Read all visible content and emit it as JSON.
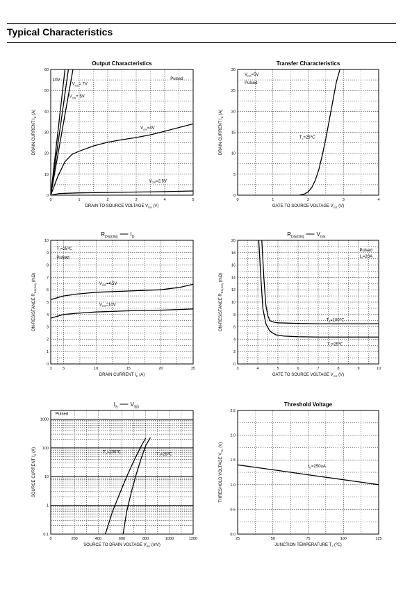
{
  "page": {
    "title": "Typical Characteristics"
  },
  "chart_data": [
    {
      "id": "output",
      "type": "line",
      "title": "Output Characteristics",
      "xlabel": "DRAIN TO SOURCE VOLTAGE",
      "xlabel_sym": "V",
      "xlabel_sub": "DS",
      "xlabel_unit": "(V)",
      "ylabel": "DRAIN CURRENT",
      "ylabel_sym": "I",
      "ylabel_sub": "D",
      "ylabel_unit": "(A)",
      "xlim": [
        0,
        5
      ],
      "ylim": [
        0,
        60
      ],
      "xticks": [
        0,
        1,
        2,
        3,
        4,
        5
      ],
      "yticks": [
        0,
        10,
        20,
        30,
        40,
        50,
        60
      ],
      "y_log": false,
      "annotations": [
        {
          "text": "Pulsed",
          "x": 4.2,
          "y": 55
        },
        {
          "text": "10V",
          "x": 0.07,
          "y": 54.5
        },
        {
          "text": "V",
          "sub": "GS",
          "suffix": "= 7V",
          "x": 0.75,
          "y": 52.5
        },
        {
          "text": "V",
          "sub": "GS",
          "suffix": "= 5V",
          "x": 0.65,
          "y": 46.5
        },
        {
          "text": "V",
          "sub": "GS",
          "suffix": "=4V",
          "x": 3.15,
          "y": 31.5
        },
        {
          "text": "V",
          "sub": "GS",
          "suffix": "=2.5V",
          "x": 3.45,
          "y": 6.2
        }
      ],
      "series": [
        {
          "x": [
            0,
            0.5
          ],
          "y": [
            0,
            60
          ]
        },
        {
          "x": [
            0,
            0.62
          ],
          "y": [
            0,
            60
          ]
        },
        {
          "x": [
            0,
            0.78
          ],
          "y": [
            0,
            60
          ]
        },
        {
          "x": [
            0,
            0.25,
            0.5,
            0.75,
            1,
            1.5,
            2,
            2.5,
            3,
            3.5,
            4,
            4.5,
            5
          ],
          "y": [
            0,
            9,
            16,
            19.5,
            21,
            23.5,
            25.3,
            26.5,
            27.5,
            28.8,
            30.5,
            32.3,
            34
          ]
        },
        {
          "x": [
            0,
            0.3,
            1,
            2,
            3,
            4,
            5
          ],
          "y": [
            0,
            0.8,
            1.1,
            1.3,
            1.5,
            1.7,
            2
          ]
        }
      ]
    },
    {
      "id": "transfer",
      "type": "line",
      "title": "Transfer Characteristics",
      "xlabel": "GATE TO SOURCE VOLTAGE",
      "xlabel_sym": "V",
      "xlabel_sub": "GS",
      "xlabel_unit": "(V)",
      "ylabel": "DRAIN CURRENT",
      "ylabel_sym": "I",
      "ylabel_sub": "D",
      "ylabel_unit": "(A)",
      "xlim": [
        0,
        4
      ],
      "ylim": [
        0,
        30
      ],
      "xticks": [
        0,
        1,
        2,
        3,
        4
      ],
      "yticks": [
        0,
        5,
        10,
        15,
        20,
        25,
        30
      ],
      "y_log": false,
      "annotations": [
        {
          "text": "V",
          "sub": "DS",
          "suffix": "=5V",
          "x": 0.2,
          "y": 28.5
        },
        {
          "text": "Pulsed",
          "x": 0.2,
          "y": 26.5
        },
        {
          "text": "T",
          "sub": "J",
          "suffix": "=25℃",
          "x": 1.75,
          "y": 13.5
        }
      ],
      "series": [
        {
          "x": [
            1.75,
            1.9,
            2.0,
            2.1,
            2.2,
            2.3,
            2.4,
            2.5,
            2.6,
            2.7,
            2.8,
            2.9
          ],
          "y": [
            0,
            0.3,
            0.8,
            1.8,
            3.5,
            6,
            9.5,
            13.5,
            18,
            22.5,
            27,
            31
          ]
        }
      ]
    },
    {
      "id": "rds_id",
      "type": "line",
      "title_parts": {
        "a": "R",
        "a_sub": "DS(ON)",
        "b": "I",
        "b_sub": "D"
      },
      "xlabel": "DRAIN CURRENT",
      "xlabel_sym": "I",
      "xlabel_sub": "D",
      "xlabel_unit": "(A)",
      "ylabel": "ON-RESISTANCE",
      "ylabel_sym": "R",
      "ylabel_sub": "DS(ON)",
      "ylabel_unit": "(mΩ)",
      "xlim": [
        3,
        25
      ],
      "ylim": [
        0,
        10
      ],
      "xticks": [
        3,
        5,
        10,
        15,
        20,
        25
      ],
      "yticks": [
        0,
        1,
        2,
        3,
        4,
        5,
        6,
        7,
        8,
        9,
        10
      ],
      "y_log": false,
      "annotations": [
        {
          "text": "T",
          "sub": "J",
          "suffix": "=25℃",
          "x": 3.9,
          "y": 9.2
        },
        {
          "text": "Pulsed",
          "x": 3.9,
          "y": 8.5
        },
        {
          "text": "V",
          "sub": "GS",
          "suffix": "=4.5V",
          "x": 10.5,
          "y": 6.4
        },
        {
          "text": "V",
          "sub": "GS",
          "suffix": "=10V",
          "x": 10.5,
          "y": 4.7
        }
      ],
      "series": [
        {
          "x": [
            3,
            5,
            7,
            10,
            15,
            20,
            23,
            25
          ],
          "y": [
            5.2,
            5.5,
            5.65,
            5.8,
            5.9,
            6.0,
            6.2,
            6.45
          ]
        },
        {
          "x": [
            3,
            5,
            7,
            10,
            15,
            20,
            25
          ],
          "y": [
            3.7,
            4.0,
            4.1,
            4.2,
            4.3,
            4.35,
            4.45
          ]
        }
      ]
    },
    {
      "id": "rds_vgs",
      "type": "line",
      "title_parts": {
        "a": "R",
        "a_sub": "DS(ON)",
        "b": "V",
        "b_sub": "GS"
      },
      "xlabel": "GATE TO SOURCE VOLTAGE",
      "xlabel_sym": "V",
      "xlabel_sub": "GS",
      "xlabel_unit": "(V)",
      "ylabel": "ON-RESISTANCE",
      "ylabel_sym": "R",
      "ylabel_sub": "DS(ON)",
      "ylabel_unit": "(mΩ)",
      "xlim": [
        3,
        10
      ],
      "ylim": [
        0,
        20
      ],
      "xticks": [
        3,
        4,
        5,
        6,
        7,
        8,
        9,
        10
      ],
      "yticks": [
        0,
        2,
        4,
        6,
        8,
        10,
        12,
        14,
        16,
        18,
        20
      ],
      "y_log": false,
      "annotations": [
        {
          "text": "Pulsed",
          "x": 9.05,
          "y": 18.2
        },
        {
          "text": "I",
          "sub": "D",
          "suffix": "=20A",
          "x": 9.05,
          "y": 17.2
        },
        {
          "text": "T",
          "sub": "J",
          "suffix": "=100℃",
          "x": 7.4,
          "y": 6.9
        },
        {
          "text": "T",
          "sub": "J",
          "suffix": "=25℃",
          "x": 7.45,
          "y": 3.0
        }
      ],
      "series": [
        {
          "x": [
            4.2,
            4.3,
            4.4,
            4.5,
            4.6,
            4.8,
            5,
            6,
            7,
            8,
            9,
            10
          ],
          "y": [
            20,
            14,
            9.5,
            7.8,
            7.0,
            6.75,
            6.65,
            6.55,
            6.5,
            6.5,
            6.5,
            6.5
          ]
        },
        {
          "x": [
            4.05,
            4.15,
            4.25,
            4.4,
            4.6,
            4.9,
            5.3,
            6,
            7,
            8,
            9,
            10
          ],
          "y": [
            20,
            14,
            9,
            6.5,
            5.3,
            4.7,
            4.5,
            4.4,
            4.35,
            4.35,
            4.35,
            4.35
          ]
        }
      ]
    },
    {
      "id": "is_vsd",
      "type": "line",
      "title_parts": {
        "a": "I",
        "a_sub": "S",
        "b": "V",
        "b_sub": "SD"
      },
      "xlabel": "SOURCE TO DRAIN VOLTAGE",
      "xlabel_sym": "V",
      "xlabel_sub": "SD",
      "xlabel_unit": "(mV)",
      "ylabel": "SOURCE CURRENT",
      "ylabel_sym": "I",
      "ylabel_sub": "S",
      "ylabel_unit": "(A)",
      "xlim": [
        0,
        1200
      ],
      "ylim": [
        0.1,
        2000
      ],
      "xticks": [
        0,
        200,
        400,
        600,
        800,
        1000,
        1200
      ],
      "yticks": [
        0.1,
        1,
        10,
        100,
        1000
      ],
      "ytick_labels": [
        "0.1",
        "1",
        "10",
        "100",
        "1000"
      ],
      "y_log": true,
      "annotations": [
        {
          "text": "Pulsed",
          "x": 40,
          "y": 1400
        },
        {
          "text": "T",
          "sub": "J",
          "suffix": "=100℃",
          "x": 440,
          "y": 65
        },
        {
          "text": "T",
          "sub": "J",
          "suffix": "=25℃",
          "x": 890,
          "y": 55
        }
      ],
      "series": [
        {
          "x": [
            460,
            520,
            580,
            640,
            700,
            760,
            800
          ],
          "y": [
            0.1,
            0.6,
            2.5,
            10,
            35,
            110,
            220
          ]
        },
        {
          "x": [
            610,
            640,
            680,
            720,
            760,
            800,
            840
          ],
          "y": [
            0.1,
            0.6,
            3,
            12,
            40,
            120,
            230
          ]
        }
      ]
    },
    {
      "id": "vth",
      "type": "line",
      "title": "Threshold Voltage",
      "xlabel": "JUNCTION TEMPERATURE",
      "xlabel_sym": "T",
      "xlabel_sub": "J",
      "xlabel_unit": "(℃)",
      "ylabel": "THRESHOLD VOLTAGE",
      "ylabel_sym": "V",
      "ylabel_sub": "TH",
      "ylabel_unit": "(V)",
      "xlim": [
        25,
        125
      ],
      "ylim": [
        0,
        2.5
      ],
      "xticks": [
        25,
        50,
        75,
        100,
        125
      ],
      "yticks": [
        0,
        0.5,
        1.0,
        1.5,
        2.0,
        2.5
      ],
      "ytick_labels": [
        "0.0",
        "0.5",
        "1.0",
        "1.5",
        "2.0",
        "2.5"
      ],
      "y_log": false,
      "annotations": [
        {
          "text": "I",
          "sub": "D",
          "suffix": "=250uA",
          "x": 75,
          "y": 1.35
        }
      ],
      "series": [
        {
          "x": [
            25,
            50,
            75,
            100,
            125
          ],
          "y": [
            1.4,
            1.3,
            1.2,
            1.1,
            1.0
          ]
        }
      ]
    }
  ]
}
